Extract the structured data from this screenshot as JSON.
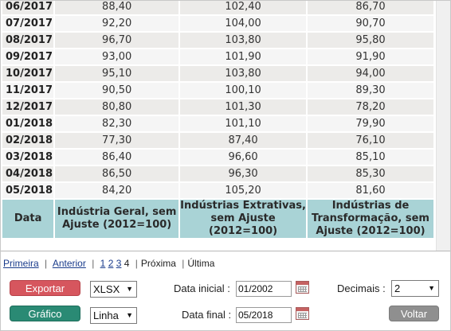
{
  "table": {
    "rows": [
      {
        "period": "06/2017",
        "geral": "88,40",
        "extrativas": "102,40",
        "transformacao": "86,70"
      },
      {
        "period": "07/2017",
        "geral": "92,20",
        "extrativas": "104,00",
        "transformacao": "90,70"
      },
      {
        "period": "08/2017",
        "geral": "96,70",
        "extrativas": "103,80",
        "transformacao": "95,80"
      },
      {
        "period": "09/2017",
        "geral": "93,00",
        "extrativas": "101,90",
        "transformacao": "91,90"
      },
      {
        "period": "10/2017",
        "geral": "95,10",
        "extrativas": "103,80",
        "transformacao": "94,00"
      },
      {
        "period": "11/2017",
        "geral": "90,50",
        "extrativas": "100,10",
        "transformacao": "89,30"
      },
      {
        "period": "12/2017",
        "geral": "80,80",
        "extrativas": "101,30",
        "transformacao": "78,20"
      },
      {
        "period": "01/2018",
        "geral": "82,30",
        "extrativas": "101,10",
        "transformacao": "79,90"
      },
      {
        "period": "02/2018",
        "geral": "77,30",
        "extrativas": "87,40",
        "transformacao": "76,10"
      },
      {
        "period": "03/2018",
        "geral": "86,40",
        "extrativas": "96,60",
        "transformacao": "85,10"
      },
      {
        "period": "04/2018",
        "geral": "86,50",
        "extrativas": "96,30",
        "transformacao": "85,30"
      },
      {
        "period": "05/2018",
        "geral": "84,20",
        "extrativas": "105,20",
        "transformacao": "81,60"
      }
    ],
    "headers": {
      "data": "Data",
      "geral": "Indústria Geral, sem Ajuste (2012=100)",
      "extrativas": "Indústrias Extrativas, sem Ajuste (2012=100)",
      "transformacao": "Indústrias de Transformação, sem Ajuste (2012=100)"
    }
  },
  "pagination": {
    "first": "Primeira",
    "previous": "Anterior",
    "separator": "|",
    "pages": [
      "1",
      "2",
      "3"
    ],
    "current": "4",
    "next": "Próxima",
    "last": "Última"
  },
  "controls": {
    "export_label": "Exportar",
    "format_value": "XLSX",
    "chart_label": "Gráfico",
    "chart_type_value": "Linha",
    "start_label": "Data inicial :",
    "start_value": "01/2002",
    "end_label": "Data final :",
    "end_value": "05/2018",
    "decimals_label": "Decimais :",
    "decimals_value": "2",
    "back_label": "Voltar"
  },
  "colors": {
    "header_bg": "#a9d3d6",
    "export_button": "#d6565e",
    "chart_button": "#2a8a74",
    "back_button": "#8f8f8f"
  }
}
